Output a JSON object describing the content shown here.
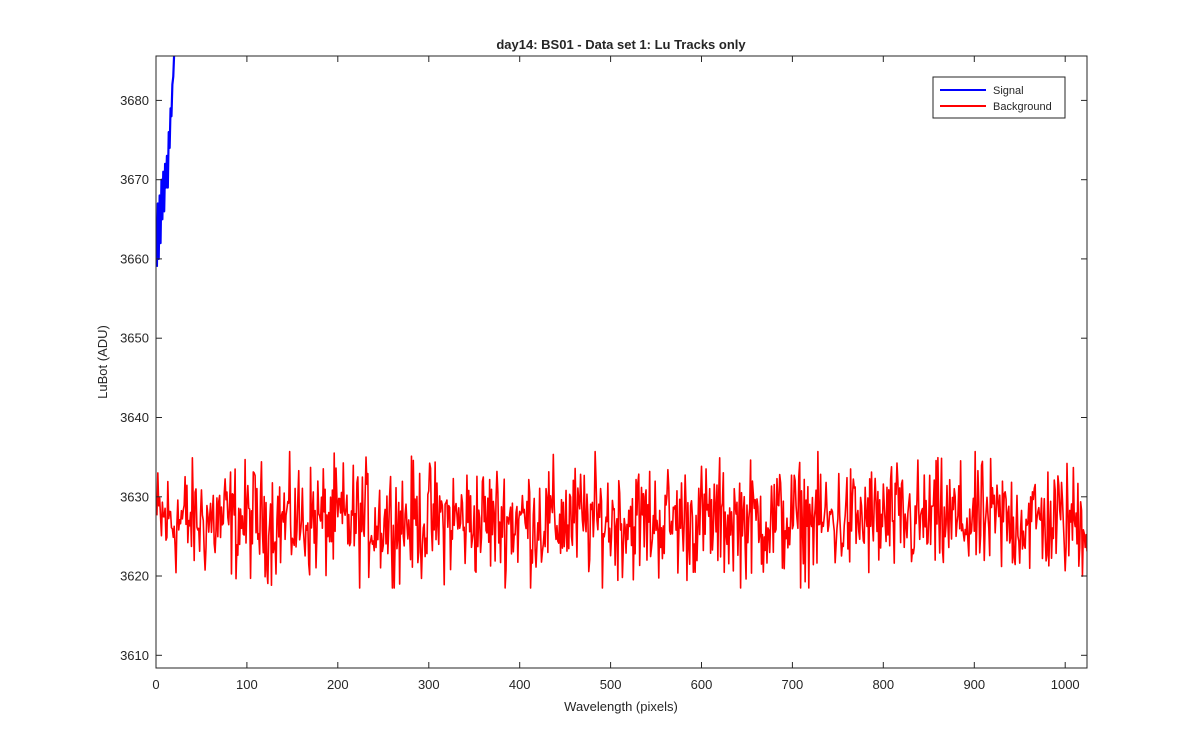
{
  "chart_data": {
    "type": "line",
    "title": "day14: BS01 - Data set 1: Lu Tracks only",
    "xlabel": "Wavelength (pixels)",
    "ylabel": "LuBot (ADU)",
    "xlim": [
      0,
      1024
    ],
    "ylim": [
      3608.4,
      3685.6
    ],
    "xticks": [
      0,
      100,
      200,
      300,
      400,
      500,
      600,
      700,
      800,
      900,
      1000
    ],
    "yticks": [
      3610,
      3620,
      3630,
      3640,
      3650,
      3660,
      3670,
      3680
    ],
    "grid": false,
    "legend_position": "top-right",
    "series": [
      {
        "name": "Signal",
        "color": "#0000ff",
        "x": [
          1,
          2,
          3,
          4,
          5,
          6,
          7,
          8,
          9,
          10,
          11,
          12,
          13,
          14,
          15,
          16,
          17,
          18,
          19,
          20,
          21
        ],
        "y": [
          3659,
          3667,
          3660,
          3668,
          3662,
          3670,
          3665,
          3671,
          3666,
          3672,
          3669,
          3673,
          3669,
          3676,
          3674,
          3679,
          3678,
          3682,
          3683,
          3686,
          3690
        ]
      },
      {
        "name": "Background",
        "color": "#ff0000",
        "x_start": 1,
        "x_end": 1024,
        "mean": 3627,
        "min": 3618.5,
        "max": 3635.7
      }
    ]
  }
}
